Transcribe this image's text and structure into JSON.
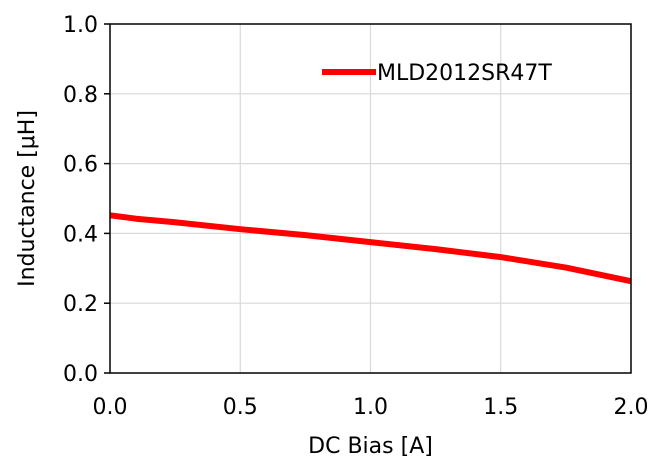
{
  "chart_data": {
    "type": "line",
    "title": "",
    "xlabel": "DC Bias [A]",
    "ylabel": "Inductance [μH]",
    "xlim": [
      0.0,
      2.0
    ],
    "ylim": [
      0.0,
      1.0
    ],
    "x_ticks": [
      "0.0",
      "0.5",
      "1.0",
      "1.5",
      "2.0"
    ],
    "y_ticks": [
      "0.0",
      "0.2",
      "0.4",
      "0.6",
      "0.8",
      "1.0"
    ],
    "grid": true,
    "legend_position": "top-right",
    "series": [
      {
        "name": "MLD2012SR47T",
        "color": "#ff0000",
        "x": [
          0.0,
          0.1,
          0.25,
          0.5,
          0.75,
          1.0,
          1.25,
          1.5,
          1.75,
          2.0
        ],
        "y": [
          0.452,
          0.442,
          0.432,
          0.412,
          0.395,
          0.375,
          0.355,
          0.332,
          0.302,
          0.263
        ]
      }
    ]
  }
}
